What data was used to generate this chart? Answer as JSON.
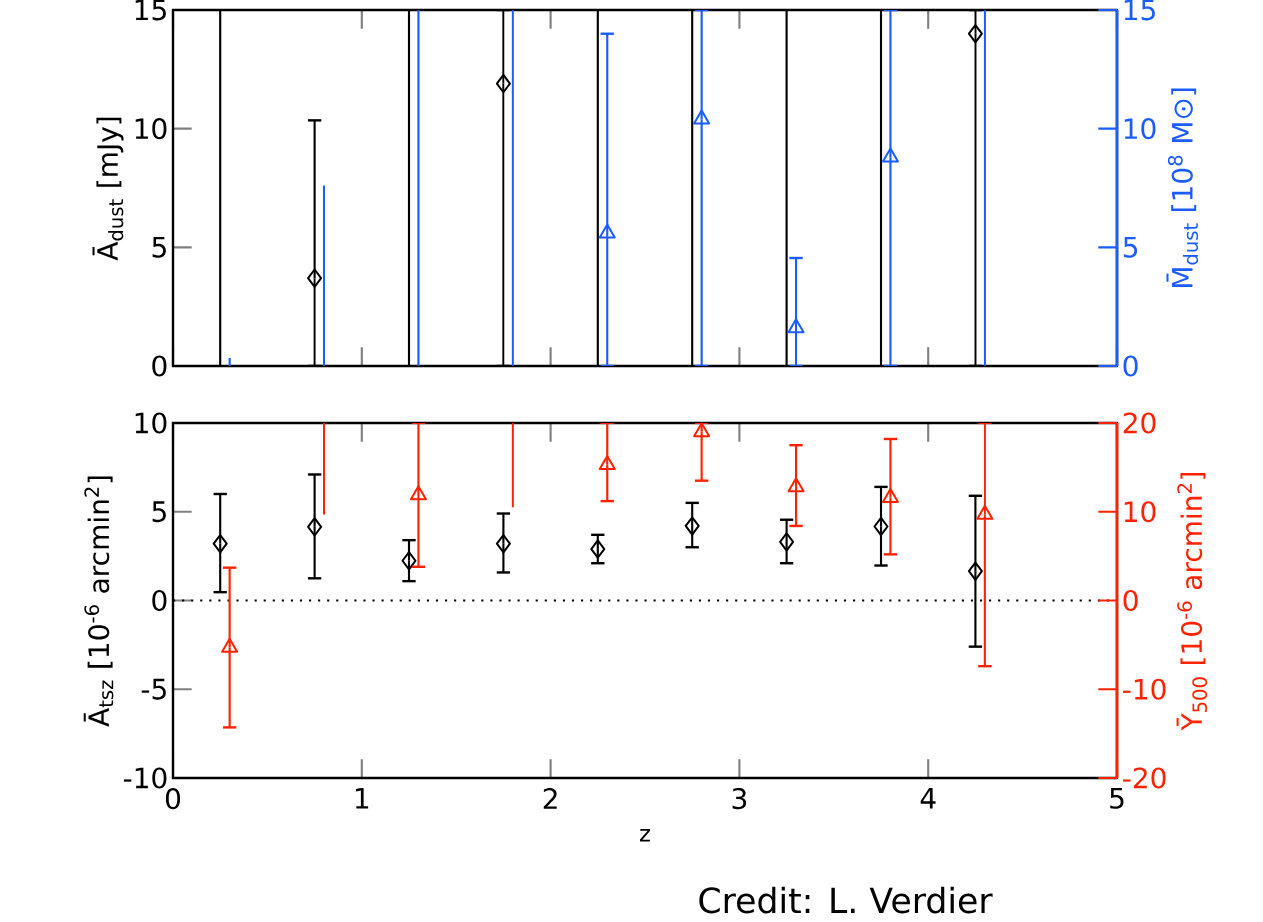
{
  "chart_data": [
    {
      "type": "scatter",
      "xlim": [
        0,
        5
      ],
      "xticks": [
        0,
        1,
        2,
        3,
        4,
        5
      ],
      "ylim": [
        0,
        15
      ],
      "yticks": [
        0,
        5,
        10,
        15
      ],
      "y2lim": [
        0,
        15
      ],
      "y2ticks": [
        0,
        5,
        10,
        15
      ],
      "ylabel": "Ā$_{dust}$ [mJy]",
      "y2label": "M̄$_{dust}$ [10$^{8}$ M⊙]",
      "tick_labels": "y",
      "series": [
        {
          "type": "line",
          "color": "#000000",
          "marker": "none",
          "x": [
            0.25,
            0.25
          ],
          "values": [
            0,
            15
          ]
        },
        {
          "type": "line",
          "color": "#000000",
          "marker": "none",
          "x": [
            1.25,
            1.25
          ],
          "values": [
            0,
            15
          ]
        },
        {
          "type": "line",
          "color": "#000000",
          "marker": "none",
          "x": [
            2.25,
            2.25
          ],
          "values": [
            0,
            15
          ]
        },
        {
          "type": "line",
          "color": "#000000",
          "marker": "none",
          "x": [
            2.75,
            2.75
          ],
          "values": [
            0,
            15
          ]
        },
        {
          "type": "line",
          "color": "#000000",
          "marker": "none",
          "x": [
            3.25,
            3.25
          ],
          "values": [
            0,
            15
          ]
        },
        {
          "type": "line",
          "color": "#000000",
          "marker": "none",
          "x": [
            3.75,
            3.75
          ],
          "values": [
            0,
            15
          ]
        },
        {
          "type": "line",
          "color": "#1a5cff",
          "marker": "none",
          "axis": "y2",
          "x": [
            0.3,
            0.3
          ],
          "values": [
            0,
            0.34
          ]
        },
        {
          "type": "line",
          "color": "#1a5cff",
          "marker": "none",
          "axis": "y2",
          "x": [
            0.8,
            0.8
          ],
          "values": [
            0,
            7.6
          ]
        },
        {
          "type": "line",
          "color": "#1a5cff",
          "marker": "none",
          "axis": "y2",
          "x": [
            1.3,
            1.3
          ],
          "values": [
            0,
            15
          ]
        },
        {
          "type": "line",
          "color": "#1a5cff",
          "marker": "none",
          "axis": "y2",
          "x": [
            1.8,
            1.8
          ],
          "values": [
            0,
            15
          ]
        },
        {
          "type": "line",
          "color": "#1a5cff",
          "marker": "none",
          "axis": "y2",
          "x": [
            4.3,
            4.3
          ],
          "values": [
            0,
            15
          ]
        },
        {
          "color": "#000000",
          "marker": "diamond",
          "x": [
            0.75,
            1.75,
            4.25
          ],
          "values": [
            3.7,
            11.9,
            14.0
          ],
          "errors": [
            [
              0,
              10.35
            ],
            [
              0,
              15
            ],
            [
              0,
              15
            ]
          ]
        },
        {
          "color": "#1a5cff",
          "marker": "triangle",
          "axis": "y2",
          "x": [
            2.3,
            2.8,
            3.3,
            3.8
          ],
          "values": [
            5.6,
            10.4,
            1.6,
            8.8
          ],
          "errors": [
            [
              0,
              14.0
            ],
            [
              0,
              15
            ],
            [
              0,
              4.55
            ],
            [
              0,
              15
            ]
          ]
        }
      ]
    },
    {
      "type": "scatter",
      "xlim": [
        0,
        5
      ],
      "xticks": [
        0,
        1,
        2,
        3,
        4,
        5
      ],
      "ylim": [
        -10,
        10
      ],
      "yticks": [
        -10,
        -5,
        0,
        5,
        10
      ],
      "y2lim": [
        -20,
        20
      ],
      "y2ticks": [
        -20,
        -10,
        0,
        10,
        20
      ],
      "xlabel": "z",
      "ylabel": "Ā$_{tsz}$ [10$^{-6}$ arcmin$^{2}$]",
      "y2label": "Ȳ$_{500}$ [10$^{-6}$ arcmin$^{2}$]",
      "ref_lines": [
        {
          "axis": "y",
          "value": 0,
          "color": "#000000",
          "line_style": "dotted"
        }
      ],
      "annotations": [
        "Credit: L. Verdier"
      ],
      "series": [
        {
          "type": "line",
          "color": "#ff2200",
          "marker": "none",
          "axis": "y2",
          "x": [
            0.8,
            0.8
          ],
          "values": [
            9.7,
            20
          ]
        },
        {
          "type": "line",
          "color": "#ff2200",
          "marker": "none",
          "axis": "y2",
          "x": [
            1.8,
            1.8
          ],
          "values": [
            10.5,
            20
          ]
        },
        {
          "color": "#000000",
          "marker": "diamond",
          "x": [
            0.25,
            0.75,
            1.25,
            1.75,
            2.25,
            2.75,
            3.25,
            3.75,
            4.25
          ],
          "values": [
            3.2,
            4.15,
            2.24,
            3.2,
            2.9,
            4.2,
            3.3,
            4.17,
            1.65
          ],
          "errors": [
            [
              0.47,
              6.0
            ],
            [
              1.25,
              7.1
            ],
            [
              1.09,
              3.4
            ],
            [
              1.58,
              4.9
            ],
            [
              2.1,
              3.7
            ],
            [
              3.0,
              5.5
            ],
            [
              2.1,
              4.55
            ],
            [
              1.97,
              6.4
            ],
            [
              -2.6,
              5.9
            ]
          ]
        },
        {
          "color": "#ff2200",
          "marker": "triangle",
          "axis": "y2",
          "x": [
            0.3,
            1.3,
            2.3,
            2.8,
            3.3,
            3.8,
            4.3
          ],
          "values": [
            -5.3,
            11.9,
            15.3,
            19.0,
            12.8,
            11.6,
            9.7
          ],
          "errors": [
            [
              -14.3,
              3.7
            ],
            [
              3.8,
              20
            ],
            [
              11.2,
              20
            ],
            [
              13.5,
              20
            ],
            [
              8.4,
              17.5
            ],
            [
              5.2,
              18.2
            ],
            [
              -7.4,
              20
            ]
          ]
        }
      ]
    }
  ]
}
